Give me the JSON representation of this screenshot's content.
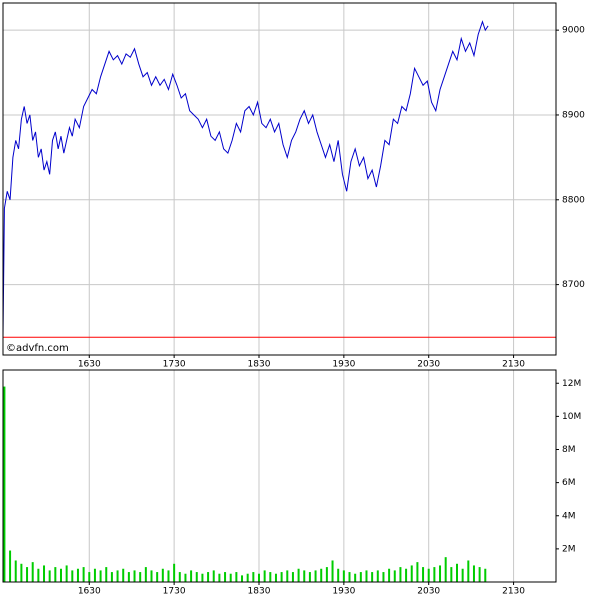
{
  "chart_data": [
    {
      "type": "line",
      "color": "#0000cc",
      "grid": true,
      "hline": 8638,
      "hline_color": "#ff0000",
      "watermark": "©advfn.com",
      "xlim": [
        929,
        1320
      ],
      "ylim": [
        8617,
        9032
      ],
      "xticks": [
        {
          "value": 990,
          "label": "1630"
        },
        {
          "value": 1050,
          "label": "1730"
        },
        {
          "value": 1110,
          "label": "1830"
        },
        {
          "value": 1170,
          "label": "1930"
        },
        {
          "value": 1230,
          "label": "2030"
        },
        {
          "value": 1290,
          "label": "2130"
        }
      ],
      "yticks": [
        8700,
        8800,
        8900,
        9000
      ],
      "x": [
        929,
        930,
        932,
        934,
        936,
        938,
        940,
        942,
        944,
        946,
        948,
        950,
        952,
        954,
        956,
        958,
        960,
        962,
        964,
        966,
        968,
        970,
        972,
        974,
        976,
        978,
        980,
        983,
        986,
        989,
        992,
        995,
        998,
        1001,
        1004,
        1007,
        1010,
        1013,
        1016,
        1019,
        1022,
        1025,
        1028,
        1031,
        1034,
        1037,
        1040,
        1043,
        1046,
        1049,
        1052,
        1055,
        1058,
        1061,
        1064,
        1067,
        1070,
        1073,
        1076,
        1079,
        1082,
        1085,
        1088,
        1091,
        1094,
        1097,
        1100,
        1103,
        1106,
        1109,
        1112,
        1115,
        1118,
        1121,
        1124,
        1127,
        1130,
        1133,
        1136,
        1139,
        1142,
        1145,
        1148,
        1151,
        1154,
        1157,
        1160,
        1163,
        1166,
        1169,
        1172,
        1175,
        1178,
        1181,
        1184,
        1187,
        1190,
        1193,
        1196,
        1199,
        1202,
        1205,
        1208,
        1211,
        1214,
        1217,
        1220,
        1223,
        1226,
        1229,
        1232,
        1235,
        1238,
        1241,
        1244,
        1247,
        1250,
        1253,
        1256,
        1259,
        1262,
        1265,
        1268,
        1270,
        1272
      ],
      "values": [
        8638,
        8790,
        8810,
        8800,
        8850,
        8870,
        8860,
        8895,
        8910,
        8890,
        8900,
        8870,
        8880,
        8850,
        8860,
        8835,
        8845,
        8830,
        8870,
        8880,
        8860,
        8875,
        8855,
        8870,
        8885,
        8875,
        8895,
        8885,
        8910,
        8920,
        8930,
        8925,
        8945,
        8960,
        8975,
        8965,
        8970,
        8960,
        8972,
        8968,
        8978,
        8960,
        8945,
        8950,
        8935,
        8945,
        8935,
        8942,
        8930,
        8948,
        8935,
        8920,
        8925,
        8905,
        8900,
        8895,
        8885,
        8895,
        8875,
        8870,
        8880,
        8860,
        8855,
        8870,
        8890,
        8880,
        8905,
        8910,
        8900,
        8915,
        8890,
        8885,
        8895,
        8880,
        8890,
        8865,
        8850,
        8870,
        8880,
        8895,
        8905,
        8890,
        8900,
        8880,
        8865,
        8850,
        8865,
        8845,
        8870,
        8830,
        8810,
        8845,
        8860,
        8840,
        8850,
        8825,
        8835,
        8815,
        8840,
        8870,
        8865,
        8895,
        8890,
        8910,
        8905,
        8925,
        8955,
        8945,
        8935,
        8940,
        8915,
        8905,
        8930,
        8945,
        8960,
        8975,
        8965,
        8990,
        8975,
        8985,
        8970,
        8995,
        9010,
        9000,
        9005
      ]
    },
    {
      "type": "bar",
      "color": "#00cc00",
      "grid": true,
      "xlim": [
        929,
        1320
      ],
      "ylim": [
        0,
        12.8
      ],
      "xticks": [
        {
          "value": 990,
          "label": "1630"
        },
        {
          "value": 1050,
          "label": "1730"
        },
        {
          "value": 1110,
          "label": "1830"
        },
        {
          "value": 1170,
          "label": "1930"
        },
        {
          "value": 1230,
          "label": "2030"
        },
        {
          "value": 1290,
          "label": "2130"
        }
      ],
      "yticks": [
        {
          "value": 2,
          "label": "2M"
        },
        {
          "value": 4,
          "label": "4M"
        },
        {
          "value": 6,
          "label": "6M"
        },
        {
          "value": 8,
          "label": "8M"
        },
        {
          "value": 10,
          "label": "10M"
        },
        {
          "value": 12,
          "label": "12M"
        }
      ],
      "x": [
        930,
        934,
        938,
        942,
        946,
        950,
        954,
        958,
        962,
        966,
        970,
        974,
        978,
        982,
        986,
        990,
        994,
        998,
        1002,
        1006,
        1010,
        1014,
        1018,
        1022,
        1026,
        1030,
        1034,
        1038,
        1042,
        1046,
        1050,
        1054,
        1058,
        1062,
        1066,
        1070,
        1074,
        1078,
        1082,
        1086,
        1090,
        1094,
        1098,
        1102,
        1106,
        1110,
        1114,
        1118,
        1122,
        1126,
        1130,
        1134,
        1138,
        1142,
        1146,
        1150,
        1154,
        1158,
        1162,
        1166,
        1170,
        1174,
        1178,
        1182,
        1186,
        1190,
        1194,
        1198,
        1202,
        1206,
        1210,
        1214,
        1218,
        1222,
        1226,
        1230,
        1234,
        1238,
        1242,
        1246,
        1250,
        1254,
        1258,
        1262,
        1266,
        1270
      ],
      "values": [
        11.8,
        1.9,
        1.3,
        1.1,
        0.9,
        1.2,
        0.8,
        1.0,
        0.7,
        0.9,
        0.8,
        1.0,
        0.7,
        0.8,
        0.9,
        0.6,
        0.8,
        0.7,
        0.9,
        0.6,
        0.7,
        0.8,
        0.6,
        0.7,
        0.6,
        0.9,
        0.7,
        0.6,
        0.8,
        0.7,
        1.1,
        0.6,
        0.5,
        0.7,
        0.6,
        0.5,
        0.6,
        0.7,
        0.5,
        0.6,
        0.5,
        0.6,
        0.4,
        0.5,
        0.6,
        0.5,
        0.7,
        0.6,
        0.5,
        0.6,
        0.7,
        0.6,
        0.8,
        0.7,
        0.6,
        0.7,
        0.8,
        0.9,
        1.3,
        0.8,
        0.7,
        0.6,
        0.5,
        0.6,
        0.7,
        0.6,
        0.7,
        0.6,
        0.8,
        0.7,
        0.9,
        0.8,
        1.0,
        1.2,
        0.9,
        0.8,
        0.9,
        1.0,
        1.5,
        0.9,
        1.1,
        0.8,
        1.3,
        1.0,
        0.9,
        0.8
      ]
    }
  ]
}
